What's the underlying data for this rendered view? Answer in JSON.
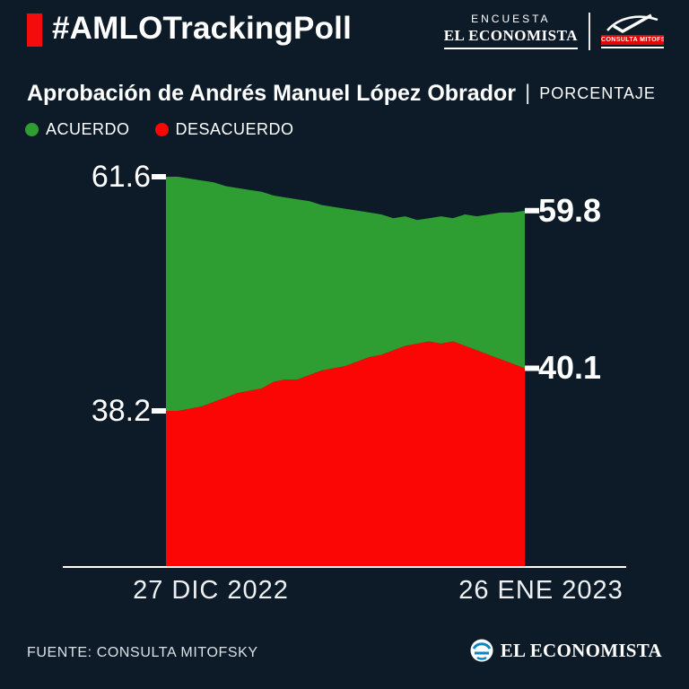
{
  "header": {
    "hashtag": "#AMLOTrackingPoll",
    "encuesta_label": "ENCUESTA",
    "economista_label": "EL ECONOMISTA",
    "mitofsky_label": "CONSULTA MITOFSKY"
  },
  "title": {
    "main": "Aprobación de Andrés Manuel López Obrador",
    "separator": "|",
    "unit": "PORCENTAJE"
  },
  "legend": [
    {
      "label": "ACUERDO",
      "color": "#2f9e32"
    },
    {
      "label": "DESACUERDO",
      "color": "#fb0505"
    }
  ],
  "chart_data": {
    "type": "area",
    "title": "Aprobación de Andrés Manuel López Obrador",
    "unit": "PORCENTAJE",
    "grid": false,
    "legend_position": "top-left",
    "x_axis": {
      "start_label": "27 DIC 2022",
      "end_label": "26 ENE 2023",
      "points": 31
    },
    "series": [
      {
        "name": "ACUERDO",
        "color": "#2f9e32",
        "start_label": "61.6",
        "end_label": "59.8",
        "start_value": 61.6,
        "end_value": 59.8,
        "values": [
          61.6,
          61.6,
          61.5,
          61.4,
          61.3,
          61.1,
          61.0,
          60.9,
          60.8,
          60.6,
          60.5,
          60.4,
          60.3,
          60.1,
          60.0,
          59.9,
          59.8,
          59.7,
          59.6,
          59.4,
          59.5,
          59.3,
          59.4,
          59.5,
          59.4,
          59.6,
          59.5,
          59.6,
          59.7,
          59.7,
          59.8
        ]
      },
      {
        "name": "DESACUERDO",
        "color": "#fb0505",
        "start_label": "38.2",
        "end_label": "40.1",
        "start_value": 38.2,
        "end_value": 40.1,
        "values": [
          38.2,
          38.2,
          38.3,
          38.4,
          38.6,
          38.8,
          39.0,
          39.1,
          39.2,
          39.5,
          39.6,
          39.6,
          39.8,
          40.0,
          40.1,
          40.2,
          40.4,
          40.6,
          40.7,
          40.9,
          41.1,
          41.2,
          41.3,
          41.2,
          41.3,
          41.1,
          40.9,
          40.7,
          40.5,
          40.3,
          40.1
        ]
      }
    ]
  },
  "footer": {
    "source": "FUENTE: CONSULTA MITOFSKY",
    "brand": "EL ECONOMISTA"
  },
  "colors": {
    "background": "#0d1b29",
    "accent_red": "#f40b0b",
    "green": "#2f9e32",
    "red": "#fb0505",
    "mitofsky_band_red": "#e10600",
    "economista_blue": "#0e86c4",
    "white": "#ffffff"
  }
}
